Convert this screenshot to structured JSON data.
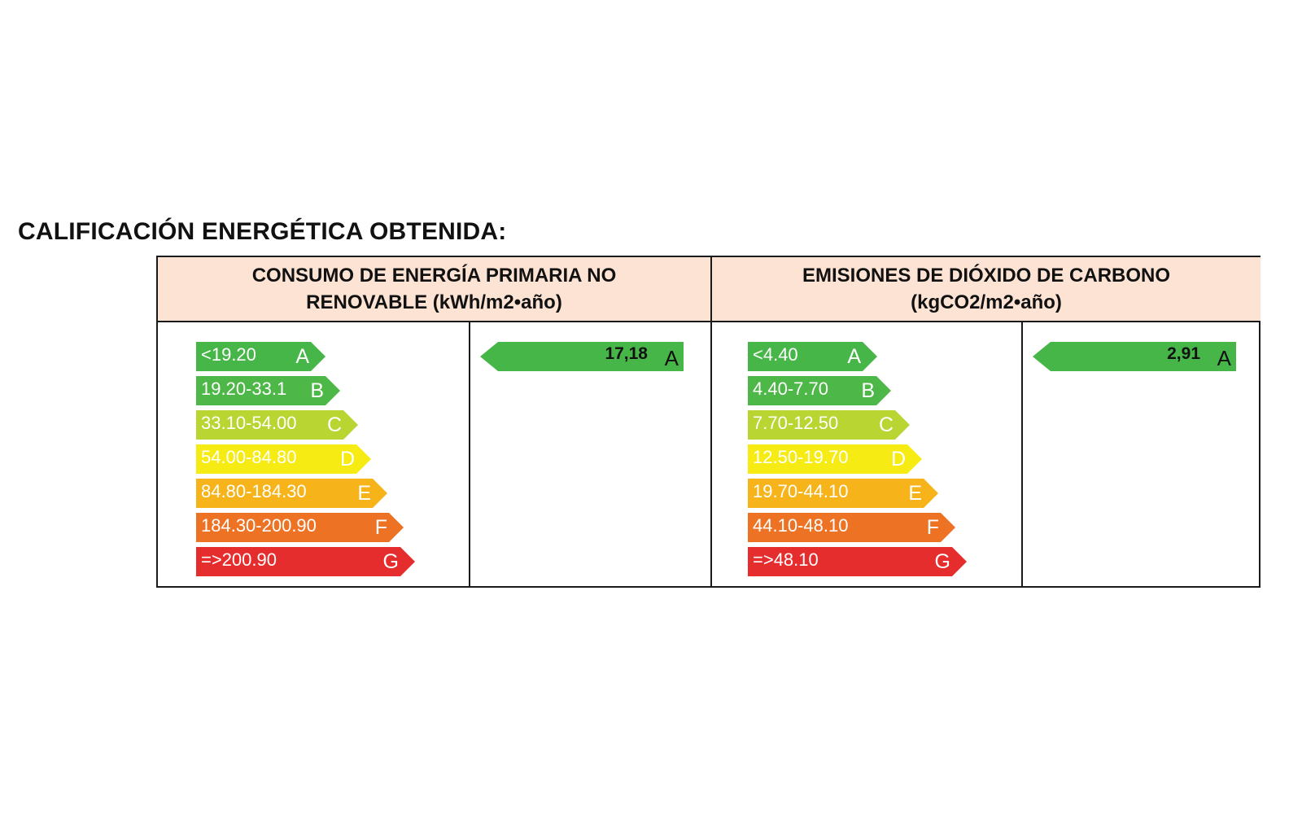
{
  "title": "CALIFICACIÓN ENERGÉTICA OBTENIDA:",
  "panels": [
    {
      "header_line1": "CONSUMO  DE ENERGÍA PRIMARIA NO",
      "header_line2": "RENOVABLE (kWh/m2•año)",
      "scale": [
        {
          "range": "<19.20",
          "letter": "A",
          "color": "#47b648"
        },
        {
          "range": "19.20-33.1",
          "letter": "B",
          "color": "#4db848"
        },
        {
          "range": "33.10-54.00",
          "letter": "C",
          "color": "#b8d532"
        },
        {
          "range": "54.00-84.80",
          "letter": "D",
          "color": "#f6ec14"
        },
        {
          "range": "84.80-184.30",
          "letter": "E",
          "color": "#f6b31a"
        },
        {
          "range": "184.30-200.90",
          "letter": "F",
          "color": "#ee7224"
        },
        {
          "range": "=>200.90",
          "letter": "G",
          "color": "#e52d2e"
        }
      ],
      "result": {
        "value": "17,18",
        "letter": "A",
        "color": "#47b648"
      }
    },
    {
      "header_line1": "EMISIONES DE DIÓXIDO DE CARBONO",
      "header_line2": "(kgCO2/m2•año)",
      "scale": [
        {
          "range": "<4.40",
          "letter": "A",
          "color": "#47b648"
        },
        {
          "range": "4.40-7.70",
          "letter": "B",
          "color": "#4db848"
        },
        {
          "range": "7.70-12.50",
          "letter": "C",
          "color": "#b8d532"
        },
        {
          "range": "12.50-19.70",
          "letter": "D",
          "color": "#f6ec14"
        },
        {
          "range": "19.70-44.10",
          "letter": "E",
          "color": "#f6b31a"
        },
        {
          "range": "44.10-48.10",
          "letter": "F",
          "color": "#ee7224"
        },
        {
          "range": "=>48.10",
          "letter": "G",
          "color": "#e52d2e"
        }
      ],
      "result": {
        "value": "2,91",
        "letter": "A",
        "color": "#47b648"
      }
    }
  ]
}
